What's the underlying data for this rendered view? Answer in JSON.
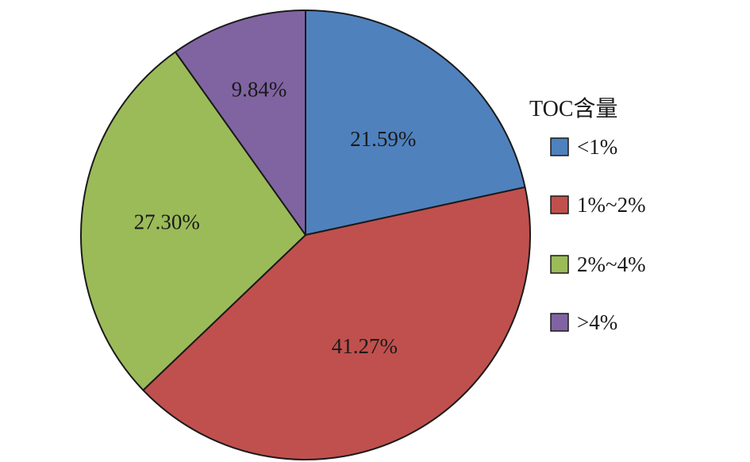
{
  "chart_data": {
    "type": "pie",
    "legend_title": "TOC含量",
    "legend_position": "right",
    "categories": [
      "<1%",
      "1%~2%",
      "2%~4%",
      ">4%"
    ],
    "values": [
      21.59,
      41.27,
      27.3,
      9.84
    ],
    "labels": [
      "21.59%",
      "41.27%",
      "27.30%",
      "9.84%"
    ],
    "colors": [
      "#4f81bd",
      "#c0504d",
      "#9bbb59",
      "#8064a2"
    ],
    "start": "12 o'clock",
    "direction": "clockwise"
  }
}
